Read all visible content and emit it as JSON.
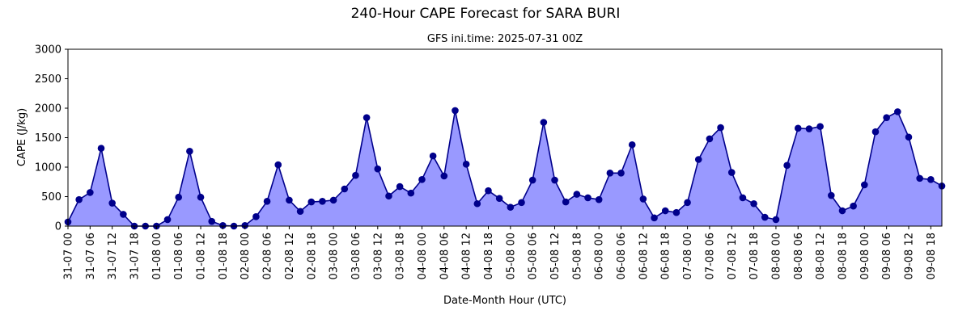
{
  "chart_data": {
    "type": "area",
    "title": "240-Hour CAPE Forecast for SARA BURI",
    "subtitle": "GFS ini.time: 2025-07-31 00Z",
    "xlabel": "Date-Month Hour (UTC)",
    "ylabel": "CAPE (J/kg)",
    "ylim": [
      0,
      3000
    ],
    "yticks": [
      0,
      500,
      1000,
      1500,
      2000,
      2500,
      3000
    ],
    "grid": false,
    "colors": {
      "fill": "#9999ff",
      "line": "#00008b",
      "marker": "#00008b"
    },
    "x": [
      "31-07 00",
      "31-07 03",
      "31-07 06",
      "31-07 09",
      "31-07 12",
      "31-07 15",
      "31-07 18",
      "31-07 21",
      "01-08 00",
      "01-08 03",
      "01-08 06",
      "01-08 09",
      "01-08 12",
      "01-08 15",
      "01-08 18",
      "01-08 21",
      "02-08 00",
      "02-08 03",
      "02-08 06",
      "02-08 09",
      "02-08 12",
      "02-08 15",
      "02-08 18",
      "02-08 21",
      "03-08 00",
      "03-08 03",
      "03-08 06",
      "03-08 09",
      "03-08 12",
      "03-08 15",
      "03-08 18",
      "03-08 21",
      "04-08 00",
      "04-08 03",
      "04-08 06",
      "04-08 09",
      "04-08 12",
      "04-08 15",
      "04-08 18",
      "04-08 21",
      "05-08 00",
      "05-08 03",
      "05-08 06",
      "05-08 09",
      "05-08 12",
      "05-08 15",
      "05-08 18",
      "05-08 21",
      "06-08 00",
      "06-08 03",
      "06-08 06",
      "06-08 09",
      "06-08 12",
      "06-08 15",
      "06-08 18",
      "06-08 21",
      "07-08 00",
      "07-08 03",
      "07-08 06",
      "07-08 09",
      "07-08 12",
      "07-08 15",
      "07-08 18",
      "07-08 21",
      "08-08 00",
      "08-08 03",
      "08-08 06",
      "08-08 09",
      "08-08 12",
      "08-08 15",
      "08-08 18",
      "08-08 21",
      "09-08 00",
      "09-08 03",
      "09-08 06",
      "09-08 09",
      "09-08 12",
      "09-08 15",
      "09-08 18",
      "09-08 21"
    ],
    "xtick_labels": [
      "31-07 00",
      "31-07 06",
      "31-07 12",
      "31-07 18",
      "01-08 00",
      "01-08 06",
      "01-08 12",
      "01-08 18",
      "02-08 00",
      "02-08 06",
      "02-08 12",
      "02-08 18",
      "03-08 00",
      "03-08 06",
      "03-08 12",
      "03-08 18",
      "04-08 00",
      "04-08 06",
      "04-08 12",
      "04-08 18",
      "05-08 00",
      "05-08 06",
      "05-08 12",
      "05-08 18",
      "06-08 00",
      "06-08 06",
      "06-08 12",
      "06-08 18",
      "07-08 00",
      "07-08 06",
      "07-08 12",
      "07-08 18",
      "08-08 00",
      "08-08 06",
      "08-08 12",
      "08-08 18",
      "09-08 00",
      "09-08 06",
      "09-08 12",
      "09-08 18"
    ],
    "values": [
      70,
      450,
      570,
      1320,
      390,
      200,
      0,
      0,
      0,
      110,
      490,
      1270,
      490,
      80,
      10,
      0,
      10,
      160,
      420,
      1040,
      440,
      250,
      410,
      420,
      440,
      630,
      860,
      1840,
      970,
      510,
      670,
      560,
      790,
      1190,
      850,
      1960,
      1050,
      380,
      600,
      470,
      320,
      400,
      780,
      1760,
      780,
      410,
      540,
      480,
      450,
      900,
      900,
      1380,
      460,
      140,
      260,
      230,
      400,
      1130,
      1480,
      1670,
      910,
      480,
      380,
      150,
      110,
      1030,
      1660,
      1650,
      1690,
      520,
      260,
      340,
      700,
      1600,
      1840,
      1940,
      1510,
      810,
      790,
      680
    ]
  }
}
